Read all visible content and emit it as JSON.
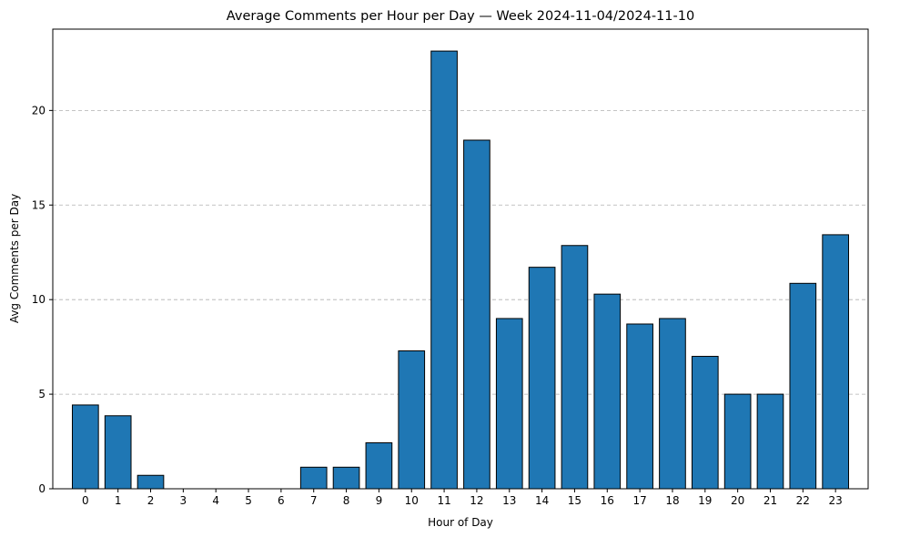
{
  "chart_data": {
    "type": "bar",
    "title": "Average Comments per Hour per Day — Week 2024-11-04/2024-11-10",
    "xlabel": "Hour of Day",
    "ylabel": "Avg Comments per Day",
    "categories": [
      "0",
      "1",
      "2",
      "3",
      "4",
      "5",
      "6",
      "7",
      "8",
      "9",
      "10",
      "11",
      "12",
      "13",
      "14",
      "15",
      "16",
      "17",
      "18",
      "19",
      "20",
      "21",
      "22",
      "23"
    ],
    "values": [
      4.43,
      3.86,
      0.71,
      0,
      0,
      0,
      0,
      1.14,
      1.14,
      2.43,
      7.29,
      23.14,
      18.43,
      9.0,
      11.71,
      12.86,
      10.29,
      8.71,
      9.0,
      7.0,
      5.0,
      5.0,
      10.86,
      13.43
    ],
    "ylim": [
      0,
      24.3
    ],
    "yticks": [
      0,
      5,
      10,
      15,
      20
    ],
    "grid": "y-dashed",
    "bar_color": "#1f77b4",
    "edge_color": "#000000",
    "grid_color": "#b0b0b0"
  }
}
